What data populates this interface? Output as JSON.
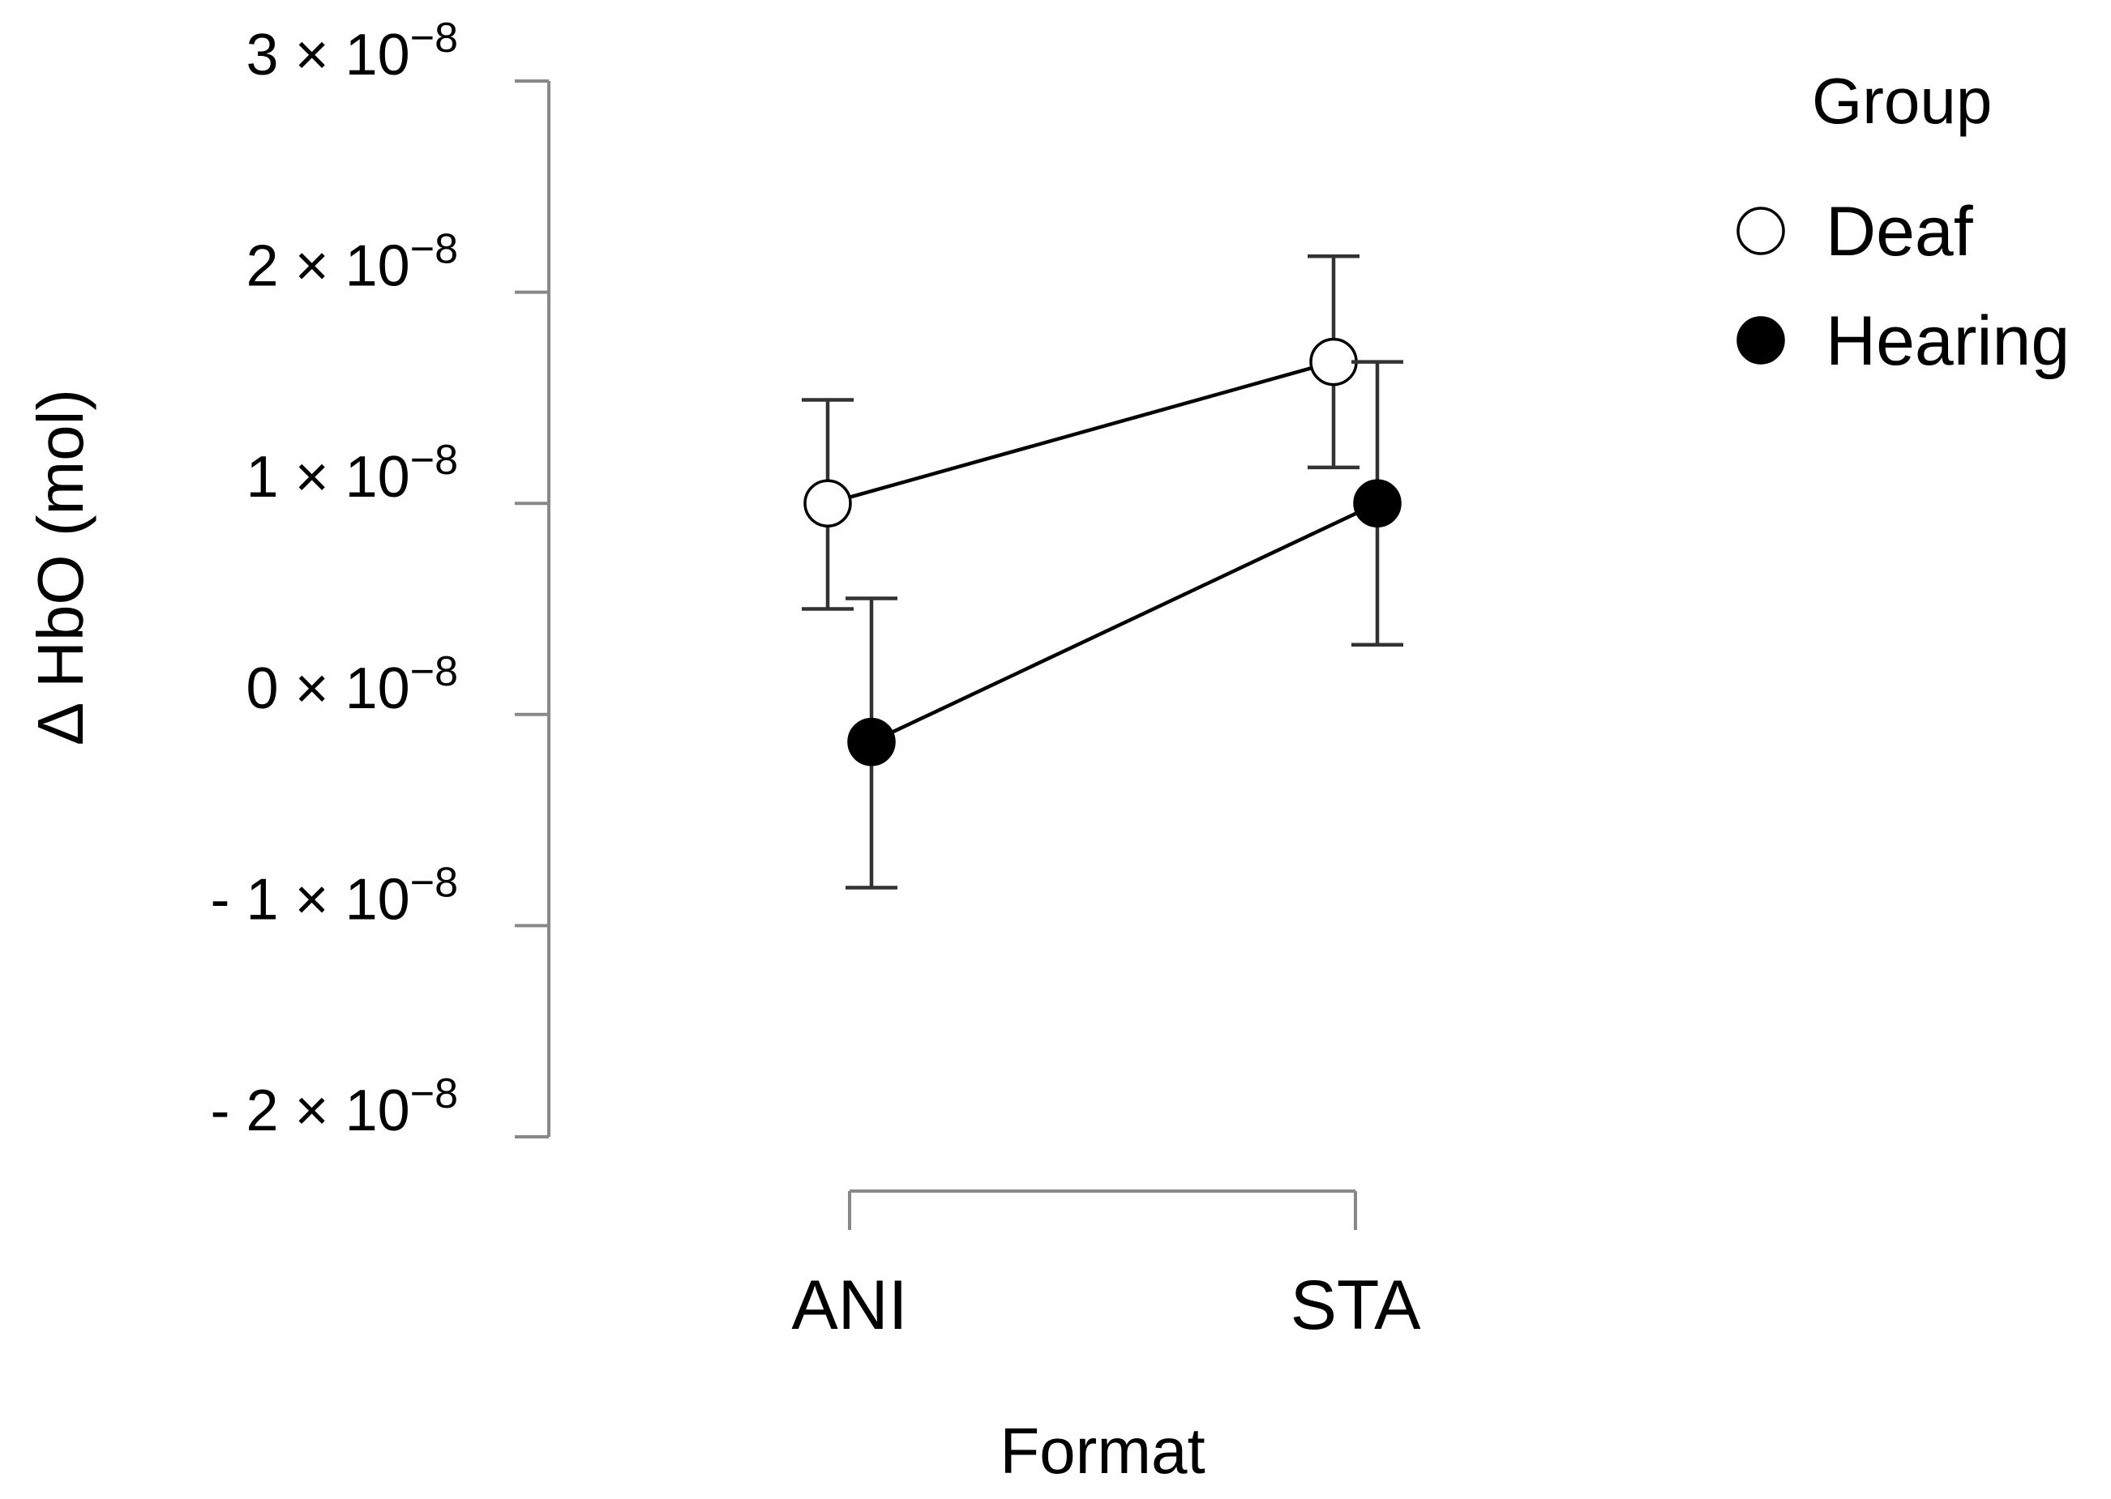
{
  "chart_data": {
    "type": "line",
    "xlabel": "Format",
    "ylabel": "Δ HbO (mol)",
    "categories": [
      "ANI",
      "STA"
    ],
    "ylim": [
      -2e-08,
      3e-08
    ],
    "yticks": [
      {
        "value": 3e-08,
        "coef": "3",
        "times": "×",
        "base": "10",
        "exp": "−8"
      },
      {
        "value": 2e-08,
        "coef": "2",
        "times": "×",
        "base": "10",
        "exp": "−8"
      },
      {
        "value": 1e-08,
        "coef": "1",
        "times": "×",
        "base": "10",
        "exp": "−8"
      },
      {
        "value": 0,
        "coef": "0",
        "times": "×",
        "base": "10",
        "exp": "−8"
      },
      {
        "value": -1e-08,
        "coef": "- 1",
        "times": "×",
        "base": "10",
        "exp": "−8"
      },
      {
        "value": -2e-08,
        "coef": "- 2",
        "times": "×",
        "base": "10",
        "exp": "−8"
      }
    ],
    "legend_title": "Group",
    "legend_position": "top-right",
    "series": [
      {
        "name": "Deaf",
        "marker": "open-circle",
        "values": [
          1e-08,
          1.67e-08
        ],
        "err_lower": [
          5e-09,
          1.17e-08
        ],
        "err_upper": [
          1.49e-08,
          2.17e-08
        ]
      },
      {
        "name": "Hearing",
        "marker": "filled-circle",
        "values": [
          -1.3e-09,
          1e-08
        ],
        "err_lower": [
          -8.2e-09,
          3.3e-09
        ],
        "err_upper": [
          5.5e-09,
          1.67e-08
        ]
      }
    ],
    "colors": {
      "line": "#000000",
      "axis": "#888888",
      "open_fill": "#ffffff",
      "filled_fill": "#000000"
    }
  }
}
